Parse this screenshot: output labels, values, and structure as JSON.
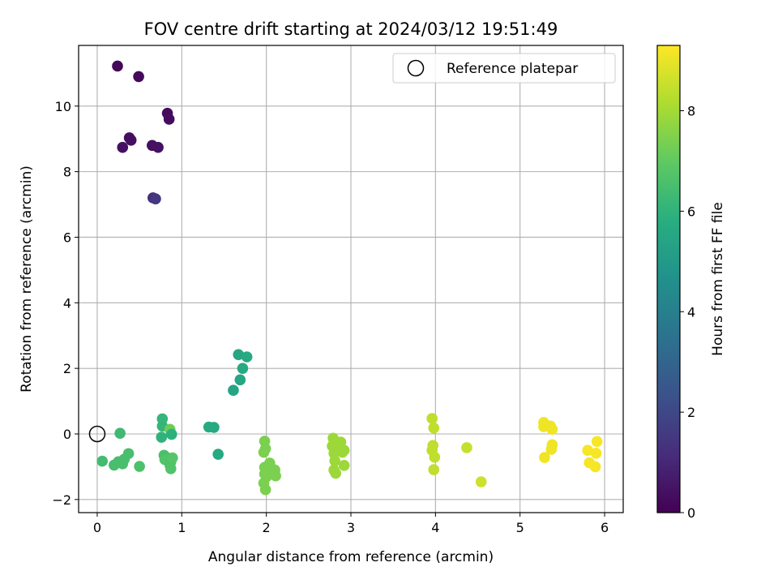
{
  "chart_data": {
    "type": "scatter",
    "title": "FOV centre drift starting at 2024/03/12 19:51:49",
    "xlabel": "Angular distance from reference (arcmin)",
    "ylabel": "Rotation from reference (arcmin)",
    "xlim": [
      -0.22,
      6.22
    ],
    "ylim": [
      -2.4,
      11.85
    ],
    "xticks": [
      0,
      1,
      2,
      3,
      4,
      5,
      6
    ],
    "yticks": [
      -2,
      0,
      2,
      4,
      6,
      8,
      10
    ],
    "grid": true,
    "legend": {
      "position": "top-right",
      "entries": [
        {
          "label": "Reference platepar",
          "marker": "open-circle",
          "color": "#000000"
        }
      ]
    },
    "reference_point": {
      "x": 0,
      "y": 0
    },
    "colorbar": {
      "label": "Hours from first FF file",
      "range": [
        0,
        9.3
      ],
      "ticks": [
        0,
        2,
        4,
        6,
        8
      ],
      "colormap": "viridis"
    },
    "points": [
      {
        "x": 0.24,
        "y": 11.22,
        "c": 0.15
      },
      {
        "x": 0.49,
        "y": 10.9,
        "c": 0.2
      },
      {
        "x": 0.83,
        "y": 9.78,
        "c": 0.25
      },
      {
        "x": 0.85,
        "y": 9.6,
        "c": 0.3
      },
      {
        "x": 0.38,
        "y": 9.03,
        "c": 0.35
      },
      {
        "x": 0.4,
        "y": 8.96,
        "c": 0.35
      },
      {
        "x": 0.3,
        "y": 8.74,
        "c": 0.4
      },
      {
        "x": 0.65,
        "y": 8.8,
        "c": 0.4
      },
      {
        "x": 0.72,
        "y": 8.74,
        "c": 0.45
      },
      {
        "x": 0.66,
        "y": 7.2,
        "c": 1.2
      },
      {
        "x": 0.69,
        "y": 7.17,
        "c": 1.5
      },
      {
        "x": 1.61,
        "y": 1.33,
        "c": 5.4
      },
      {
        "x": 1.67,
        "y": 2.42,
        "c": 5.5
      },
      {
        "x": 1.69,
        "y": 1.65,
        "c": 5.5
      },
      {
        "x": 1.72,
        "y": 2.0,
        "c": 5.6
      },
      {
        "x": 1.77,
        "y": 2.35,
        "c": 5.6
      },
      {
        "x": 1.32,
        "y": 0.21,
        "c": 5.6
      },
      {
        "x": 1.38,
        "y": 0.2,
        "c": 5.6
      },
      {
        "x": 1.43,
        "y": -0.62,
        "c": 5.6
      },
      {
        "x": 0.77,
        "y": 0.46,
        "c": 6.1
      },
      {
        "x": 0.77,
        "y": 0.24,
        "c": 6.1
      },
      {
        "x": 0.76,
        "y": -0.1,
        "c": 6.0
      },
      {
        "x": 0.79,
        "y": -0.65,
        "c": 6.6
      },
      {
        "x": 0.81,
        "y": -0.7,
        "c": 6.5
      },
      {
        "x": 0.8,
        "y": -0.78,
        "c": 6.7
      },
      {
        "x": 0.87,
        "y": -0.85,
        "c": 6.6
      },
      {
        "x": 0.86,
        "y": -0.95,
        "c": 6.6
      },
      {
        "x": 0.87,
        "y": -1.06,
        "c": 6.7
      },
      {
        "x": 0.89,
        "y": -0.73,
        "c": 6.8
      },
      {
        "x": 0.86,
        "y": 0.14,
        "c": 7.2
      },
      {
        "x": 0.88,
        "y": -0.01,
        "c": 5.9
      },
      {
        "x": 0.27,
        "y": 0.02,
        "c": 6.3
      },
      {
        "x": 0.06,
        "y": -0.83,
        "c": 6.4
      },
      {
        "x": 0.2,
        "y": -0.95,
        "c": 6.5
      },
      {
        "x": 0.25,
        "y": -0.85,
        "c": 6.5
      },
      {
        "x": 0.3,
        "y": -0.91,
        "c": 6.5
      },
      {
        "x": 0.32,
        "y": -0.77,
        "c": 6.5
      },
      {
        "x": 0.37,
        "y": -0.6,
        "c": 6.5
      },
      {
        "x": 0.5,
        "y": -0.99,
        "c": 6.6
      },
      {
        "x": 1.98,
        "y": -0.22,
        "c": 7.4
      },
      {
        "x": 1.99,
        "y": -0.45,
        "c": 7.4
      },
      {
        "x": 1.97,
        "y": -0.56,
        "c": 7.4
      },
      {
        "x": 1.98,
        "y": -1.02,
        "c": 7.4
      },
      {
        "x": 1.98,
        "y": -1.22,
        "c": 7.4
      },
      {
        "x": 1.97,
        "y": -1.5,
        "c": 7.4
      },
      {
        "x": 1.99,
        "y": -1.7,
        "c": 7.4
      },
      {
        "x": 2.04,
        "y": -0.89,
        "c": 7.4
      },
      {
        "x": 2.07,
        "y": -1.07,
        "c": 7.4
      },
      {
        "x": 2.1,
        "y": -1.1,
        "c": 7.4
      },
      {
        "x": 2.11,
        "y": -1.28,
        "c": 7.4
      },
      {
        "x": 2.0,
        "y": -1.31,
        "c": 7.4
      },
      {
        "x": 2.79,
        "y": -0.13,
        "c": 7.9
      },
      {
        "x": 2.78,
        "y": -0.37,
        "c": 7.9
      },
      {
        "x": 2.8,
        "y": -0.59,
        "c": 7.9
      },
      {
        "x": 2.81,
        "y": -0.82,
        "c": 7.9
      },
      {
        "x": 2.8,
        "y": -1.1,
        "c": 7.9
      },
      {
        "x": 2.82,
        "y": -1.2,
        "c": 7.9
      },
      {
        "x": 2.85,
        "y": -0.45,
        "c": 7.9
      },
      {
        "x": 2.88,
        "y": -0.25,
        "c": 7.9
      },
      {
        "x": 2.9,
        "y": -0.56,
        "c": 7.9
      },
      {
        "x": 2.92,
        "y": -0.5,
        "c": 7.9
      },
      {
        "x": 2.92,
        "y": -0.96,
        "c": 7.9
      },
      {
        "x": 3.96,
        "y": 0.47,
        "c": 8.4
      },
      {
        "x": 3.98,
        "y": 0.18,
        "c": 8.4
      },
      {
        "x": 3.97,
        "y": -0.35,
        "c": 8.4
      },
      {
        "x": 3.96,
        "y": -0.5,
        "c": 8.4
      },
      {
        "x": 3.99,
        "y": -0.71,
        "c": 8.4
      },
      {
        "x": 3.98,
        "y": -1.09,
        "c": 8.4
      },
      {
        "x": 4.37,
        "y": -0.42,
        "c": 8.5
      },
      {
        "x": 4.54,
        "y": -1.46,
        "c": 8.6
      },
      {
        "x": 5.28,
        "y": 0.35,
        "c": 9.1
      },
      {
        "x": 5.28,
        "y": 0.22,
        "c": 9.1
      },
      {
        "x": 5.36,
        "y": 0.24,
        "c": 9.1
      },
      {
        "x": 5.38,
        "y": 0.14,
        "c": 9.1
      },
      {
        "x": 5.38,
        "y": -0.33,
        "c": 9.1
      },
      {
        "x": 5.37,
        "y": -0.47,
        "c": 9.1
      },
      {
        "x": 5.29,
        "y": -0.72,
        "c": 9.1
      },
      {
        "x": 5.8,
        "y": -0.5,
        "c": 9.2
      },
      {
        "x": 5.82,
        "y": -0.88,
        "c": 9.2
      },
      {
        "x": 5.91,
        "y": -0.23,
        "c": 9.2
      },
      {
        "x": 5.9,
        "y": -0.59,
        "c": 9.2
      },
      {
        "x": 5.89,
        "y": -1.0,
        "c": 9.2
      }
    ]
  }
}
